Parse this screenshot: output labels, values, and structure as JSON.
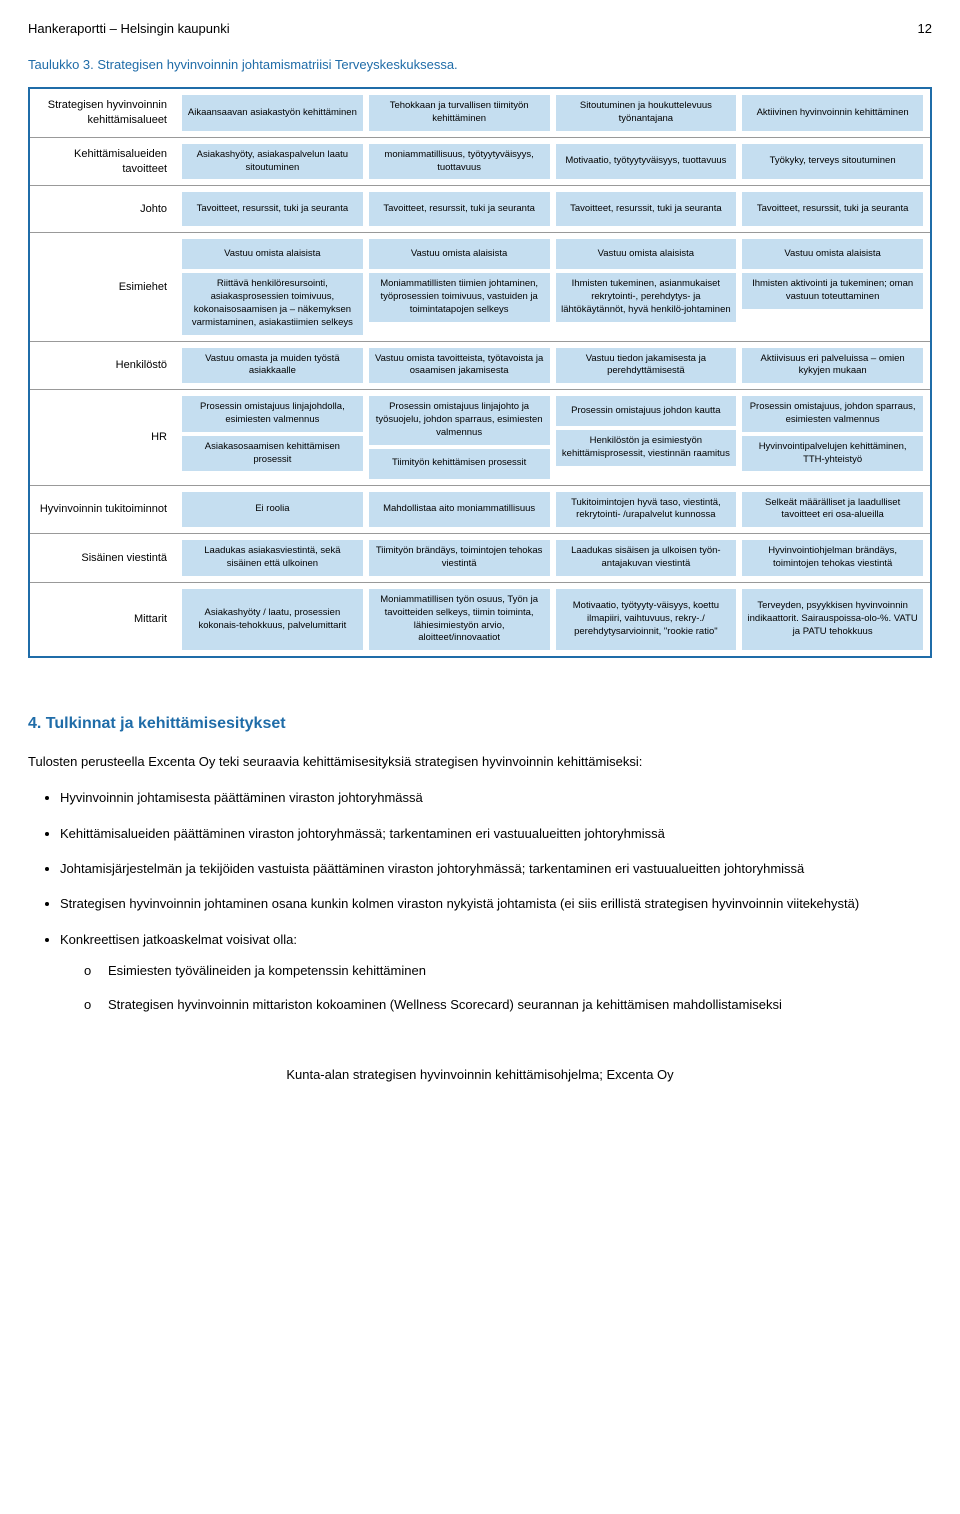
{
  "header": {
    "left": "Hankeraportti – Helsingin kaupunki",
    "page": "12"
  },
  "table_title": "Taulukko 3. Strategisen hyvinvoinnin johtamismatriisi Terveyskeskuksessa.",
  "matrix": {
    "rows": [
      {
        "label": "Strategisen hyvinvoinnin kehittämisalueet",
        "cells": [
          "Aikaansaavan asiakastyön kehittäminen",
          "Tehokkaan ja turvallisen tiimityön kehittäminen",
          "Sitoutuminen ja houkuttelevuus työnantajana",
          "Aktiivinen hyvinvoinnin kehittäminen"
        ]
      },
      {
        "label": "Kehittämisalueiden tavoitteet",
        "cells": [
          "Asiakashyöty, asiakaspalvelun laatu sitoutuminen",
          "moniammatillisuus, työtyytyväisyys, tuottavuus",
          "Motivaatio, työtyytyväisyys, tuottavuus",
          "Työkyky, terveys sitoutuminen"
        ]
      },
      {
        "label": "Johto",
        "cells": [
          "Tavoitteet, resurssit, tuki ja seuranta",
          "Tavoitteet, resurssit, tuki ja seuranta",
          "Tavoitteet, resurssit, tuki ja seuranta",
          "Tavoitteet, resurssit, tuki ja seuranta"
        ]
      },
      {
        "label": "Esimiehet",
        "stacks": [
          [
            "Vastuu omista alaisista",
            "Riittävä henkilöresursointi, asiakasprosessien toimivuus, kokonaisosaamisen ja – näkemyksen varmistaminen, asiakastiimien selkeys"
          ],
          [
            "Vastuu omista alaisista",
            "Moniammatillisten tiimien johtaminen, työprosessien toimivuus, vastuiden ja toimintatapojen selkeys"
          ],
          [
            "Vastuu omista alaisista",
            "Ihmisten tukeminen, asianmukaiset rekrytointi-, perehdytys- ja lähtökäytännöt, hyvä henkilö-johtaminen"
          ],
          [
            "Vastuu omista alaisista",
            "Ihmisten aktivointi ja tukeminen; oman vastuun toteuttaminen"
          ]
        ]
      },
      {
        "label": "Henkilöstö",
        "cells": [
          "Vastuu omasta ja muiden työstä asiakkaalle",
          "Vastuu omista tavoitteista, työtavoista ja osaamisen jakamisesta",
          "Vastuu tiedon jakamisesta ja perehdyttämisestä",
          "Aktiivisuus eri palveluissa – omien kykyjen mukaan"
        ]
      },
      {
        "label": "HR",
        "stacks": [
          [
            "Prosessin omistajuus linjajohdolla, esimiesten valmennus",
            "Asiakasosaamisen kehittämisen prosessit"
          ],
          [
            "Prosessin omistajuus linjajohto ja työsuojelu, johdon sparraus, esimiesten valmennus",
            "Tiimityön kehittämisen prosessit"
          ],
          [
            "Prosessin omistajuus johdon kautta",
            "Henkilöstön ja esimiestyön kehittämisprosessit, viestinnän raamitus"
          ],
          [
            "Prosessin omistajuus, johdon sparraus, esimiesten valmennus",
            "Hyvinvointipalvelujen kehittäminen, TTH-yhteistyö"
          ]
        ]
      },
      {
        "label": "Hyvinvoinnin tukitoiminnot",
        "cells": [
          "Ei roolia",
          "Mahdollistaa aito moniammatillisuus",
          "Tukitoimintojen hyvä taso, viestintä, rekrytointi- /urapalvelut kunnossa",
          "Selkeät määrälliset ja laadulliset tavoitteet eri osa-alueilla"
        ]
      },
      {
        "label": "Sisäinen viestintä",
        "cells": [
          "Laadukas asiakasviestintä, sekä sisäinen että ulkoinen",
          "Tiimityön brändäys, toimintojen tehokas viestintä",
          "Laadukas sisäisen ja ulkoisen työn-antajakuvan viestintä",
          "Hyvinvointiohjelman brändäys, toimintojen tehokas viestintä"
        ]
      },
      {
        "label": "Mittarit",
        "cells": [
          "Asiakashyöty / laatu, prosessien kokonais-tehokkuus, palvelumittarit",
          "Moniammatillisen työn osuus, Työn ja tavoitteiden selkeys, tiimin toiminta, lähiesimiestyön arvio, aloitteet/innovaatiot",
          "Motivaatio, työtyyty-väisyys, koettu ilmapiiri, vaihtuvuus, rekry-./ perehdytysarvioinnit, \"rookie ratio\"",
          "Terveyden, psyykkisen hyvinvoinnin indikaattorit. Sairauspoissa-olo-%. VATU ja PATU tehokkuus"
        ]
      }
    ]
  },
  "section4": {
    "title": "4. Tulkinnat ja kehittämisesitykset",
    "intro": "Tulosten perusteella Excenta Oy teki seuraavia kehittämisesityksiä strategisen hyvinvoinnin kehittämiseksi:",
    "bullets": [
      "Hyvinvoinnin johtamisesta päättäminen viraston johtoryhmässä",
      "Kehittämisalueiden päättäminen viraston johtoryhmässä; tarkentaminen eri vastuualueitten johtoryhmissä",
      "Johtamisjärjestelmän ja tekijöiden vastuista päättäminen viraston johtoryhmässä; tarkentaminen eri vastuualueitten johtoryhmissä",
      "Strategisen hyvinvoinnin johtaminen osana kunkin kolmen viraston nykyistä johtamista (ei siis erillistä strategisen hyvinvoinnin viitekehystä)",
      "Konkreettisen jatkoaskelmat voisivat olla:"
    ],
    "subbullets": [
      "Esimiesten työvälineiden ja kompetenssin kehittäminen",
      "Strategisen hyvinvoinnin mittariston kokoaminen (Wellness Scorecard) seurannan ja kehittämisen mahdollistamiseksi"
    ]
  },
  "footer": "Kunta-alan strategisen hyvinvoinnin kehittämisohjelma; Excenta Oy"
}
